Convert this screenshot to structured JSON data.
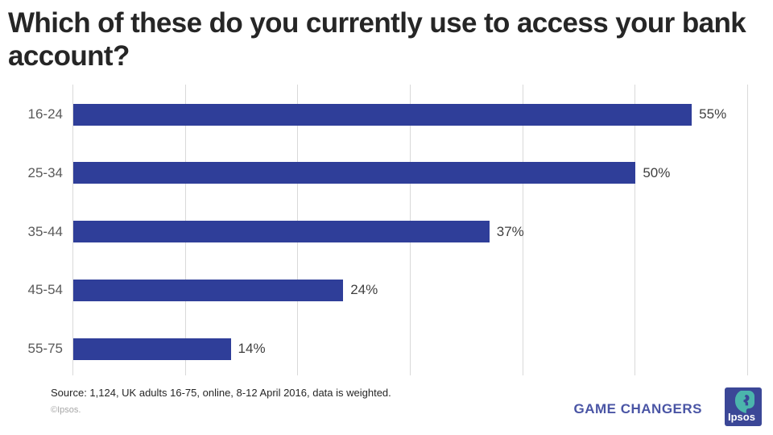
{
  "title": "Which of these do you currently use to access your bank account?",
  "chart_data": {
    "type": "bar",
    "orientation": "horizontal",
    "categories": [
      "16-24",
      "25-34",
      "35-44",
      "45-54",
      "55-75"
    ],
    "values": [
      55,
      50,
      37,
      24,
      14
    ],
    "value_labels": [
      "55%",
      "50%",
      "37%",
      "24%",
      "14%"
    ],
    "title": "Which of these do you currently use to access your bank account?",
    "xlabel": "",
    "ylabel": "",
    "xlim": [
      0,
      60
    ],
    "grid_interval": 10,
    "grid": true,
    "legend": false,
    "bar_color": "#2f3e99",
    "gridline_color": "#d9d9d9",
    "category_label_color": "#595959",
    "value_label_color": "#3f3f3f"
  },
  "footer": {
    "source": "Source: 1,124, UK adults 16-75, online, 8-12 April 2016, data is weighted.",
    "copyright": "©Ipsos.",
    "brand_text": "GAME CHANGERS",
    "brand_color": "#4a55a5",
    "logo_text": "Ipsos",
    "logo_bg_color": "#3b4797",
    "logo_accent_color": "#4bb5ac"
  }
}
